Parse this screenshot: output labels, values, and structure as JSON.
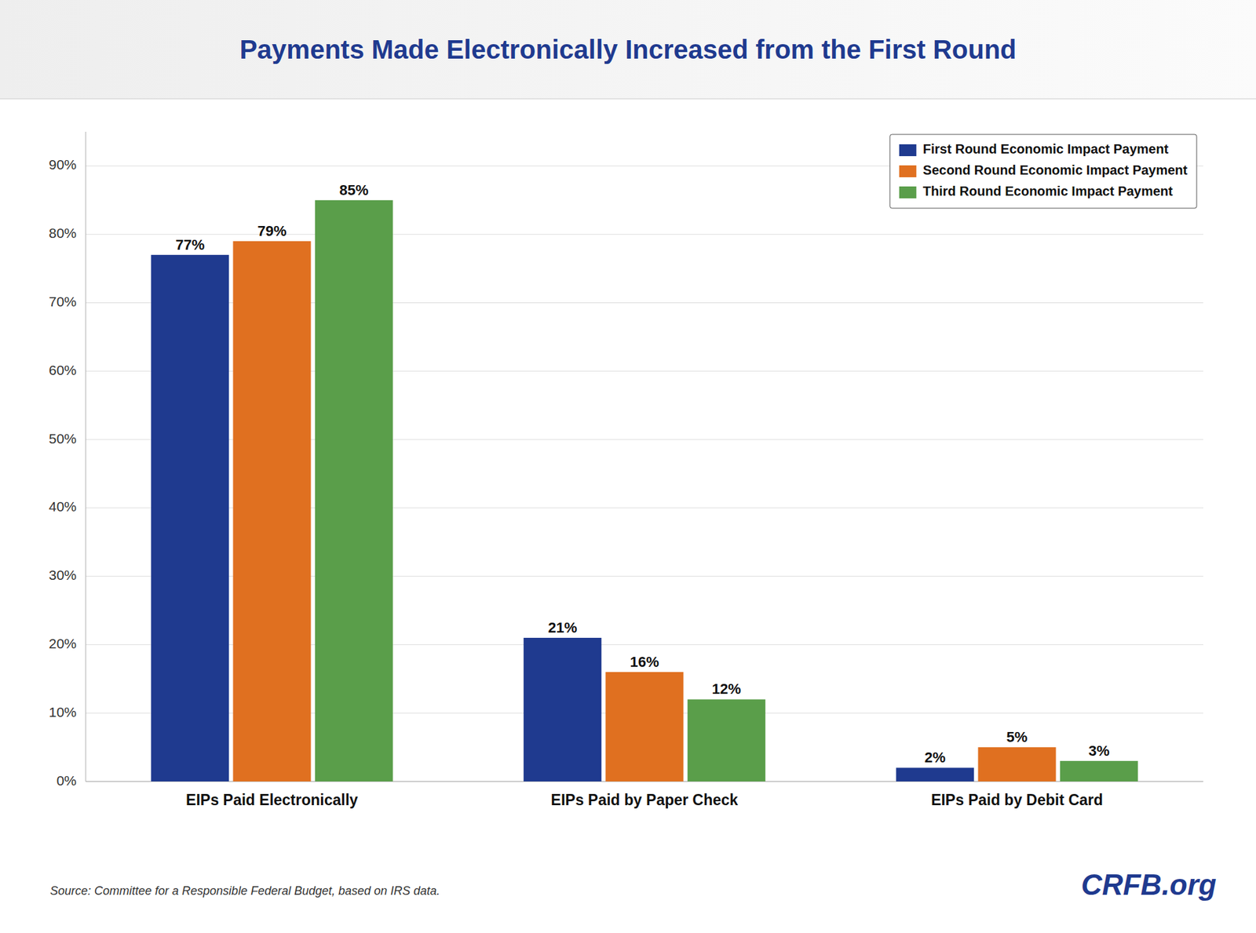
{
  "chart_data": {
    "type": "bar",
    "title": "Payments Made Electronically Increased from the First Round",
    "categories": [
      "EIPs Paid Electronically",
      "EIPs Paid by Paper Check",
      "EIPs Paid by Debit Card"
    ],
    "series": [
      {
        "name": "First Round Economic Impact Payment",
        "color": "#1F3A8F",
        "values": [
          77,
          21,
          2
        ],
        "value_labels": [
          "77%",
          "21%",
          "2%"
        ]
      },
      {
        "name": "Second Round Economic Impact Payment",
        "color": "#E07020",
        "values": [
          79,
          16,
          5
        ],
        "value_labels": [
          "79%",
          "16%",
          "5%"
        ]
      },
      {
        "name": "Third Round Economic Impact Payment",
        "color": "#5A9E4A",
        "values": [
          85,
          12,
          3
        ],
        "value_labels": [
          "85%",
          "12%",
          "3%"
        ]
      }
    ],
    "ylim": [
      0,
      95
    ],
    "yticks": [
      {
        "value": 0,
        "label": "0%"
      },
      {
        "value": 10,
        "label": "10%"
      },
      {
        "value": 20,
        "label": "20%"
      },
      {
        "value": 30,
        "label": "30%"
      },
      {
        "value": 40,
        "label": "40%"
      },
      {
        "value": 50,
        "label": "50%"
      },
      {
        "value": 60,
        "label": "60%"
      },
      {
        "value": 70,
        "label": "70%"
      },
      {
        "value": 80,
        "label": "80%"
      },
      {
        "value": 90,
        "label": "90%"
      }
    ],
    "grid": true,
    "legend": "upper right",
    "data_labels": true,
    "annotations": [
      "Source: Committee for a Responsible Federal Budget, based on IRS data.",
      "CRFB.org"
    ]
  }
}
